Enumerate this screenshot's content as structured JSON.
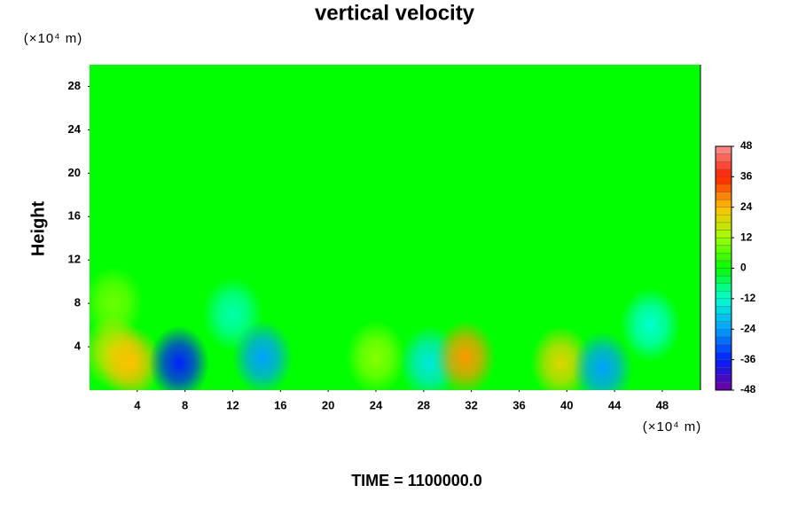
{
  "chart_data": {
    "type": "contour",
    "title": "vertical velocity",
    "ylabel": "Height",
    "x_unit": "(×10⁴ m)",
    "y_unit": "(×10⁴ m)",
    "footer": "TIME = 1100000.0",
    "xlim": [
      0,
      51.2
    ],
    "xticks": [
      4,
      8,
      12,
      16,
      20,
      24,
      28,
      32,
      36,
      40,
      44,
      48
    ],
    "ylim": [
      0,
      30
    ],
    "yticks": [
      4,
      8,
      12,
      16,
      20,
      24,
      28
    ],
    "colorbar": {
      "lim": [
        -48,
        48
      ],
      "ticks": [
        48,
        36,
        24,
        12,
        0,
        -12,
        -24,
        -36,
        -48
      ],
      "colors": [
        "#7000a0",
        "#0020ff",
        "#00a0ff",
        "#00ffd0",
        "#00ff00",
        "#a0ff00",
        "#ffc000",
        "#ff2000",
        "#ff9090"
      ]
    },
    "features": [
      {
        "x": 2,
        "y": 8,
        "value": 8
      },
      {
        "x": 12,
        "y": 7,
        "value": -10
      },
      {
        "x": 47,
        "y": 6,
        "value": -12
      },
      {
        "x": 2,
        "y": 3.5,
        "value": 18
      },
      {
        "x": 3.5,
        "y": 2.5,
        "value": 24
      },
      {
        "x": 7.5,
        "y": 2.5,
        "value": -36
      },
      {
        "x": 14.5,
        "y": 3,
        "value": -24
      },
      {
        "x": 24,
        "y": 3,
        "value": 10
      },
      {
        "x": 28.5,
        "y": 2.5,
        "value": -15
      },
      {
        "x": 31.5,
        "y": 3,
        "value": 27
      },
      {
        "x": 39.5,
        "y": 2.5,
        "value": 20
      },
      {
        "x": 43,
        "y": 2,
        "value": -24
      }
    ]
  }
}
